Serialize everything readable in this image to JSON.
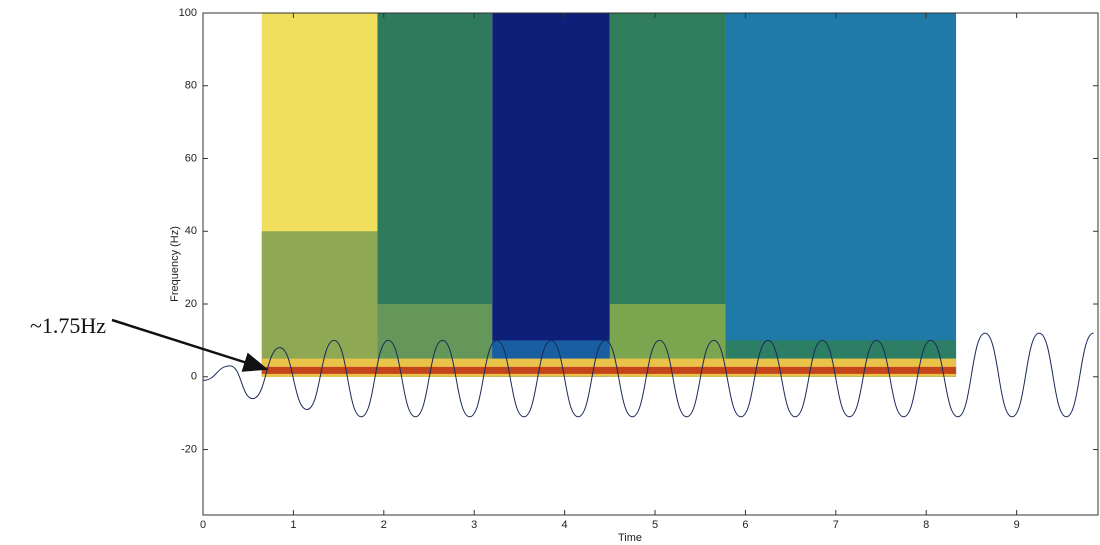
{
  "chart_data": {
    "type": "spectrogram",
    "xlabel": "Time",
    "ylabel": "Frequency (Hz)",
    "annotation": "~1.75Hz",
    "xlim": [
      0,
      9.9
    ],
    "ylim": [
      -38,
      100
    ],
    "xticks": [
      0,
      1,
      2,
      3,
      4,
      5,
      6,
      7,
      8,
      9
    ],
    "yticks": [
      -20,
      0,
      20,
      40,
      60,
      80,
      100
    ],
    "segments": [
      {
        "x": [
          0.65,
          1.93
        ],
        "color": "#f0df5c",
        "low_color": "#7e9f52",
        "low_top": 40
      },
      {
        "x": [
          1.93,
          3.2
        ],
        "color": "#2f7a5c",
        "low_color": "#6d9c58",
        "low_top": 20
      },
      {
        "x": [
          3.2,
          4.5
        ],
        "color": "#0e1f7a",
        "low_color": "#1a6aa8",
        "low_top": 10
      },
      {
        "x": [
          4.5,
          5.78
        ],
        "color": "#2f7d5a",
        "low_color": "#8aab4f",
        "low_top": 20
      },
      {
        "x": [
          5.78,
          8.33
        ],
        "color": "#1f7aa8",
        "low_color": "#2f8058",
        "low_top": 10
      }
    ],
    "ridge": {
      "frequency": 1.75,
      "color": "#c4441c",
      "band_color": "#e9c24a",
      "band_top": 5
    },
    "x": [
      0,
      0.3,
      0.55,
      0.85,
      1.15,
      1.45,
      1.75,
      2.05,
      2.35,
      2.65,
      2.95,
      3.25,
      3.55,
      3.85,
      4.15,
      4.45,
      4.75,
      5.05,
      5.35,
      5.65,
      5.95,
      6.25,
      6.55,
      6.85,
      7.15,
      7.45,
      7.75,
      8.05,
      8.35,
      8.65,
      8.95,
      9.25,
      9.55,
      9.85
    ],
    "series": [
      {
        "color": "#1a2a5a",
        "values": [
          -1,
          3,
          -6,
          8,
          -9,
          10,
          -11,
          10,
          -11,
          10,
          -11,
          10,
          -11,
          10,
          -11,
          10,
          -11,
          10,
          -11,
          10,
          -11,
          10,
          -11,
          10,
          -11,
          10,
          -11,
          10,
          -11,
          12,
          -11,
          12,
          -11,
          12
        ]
      }
    ]
  }
}
